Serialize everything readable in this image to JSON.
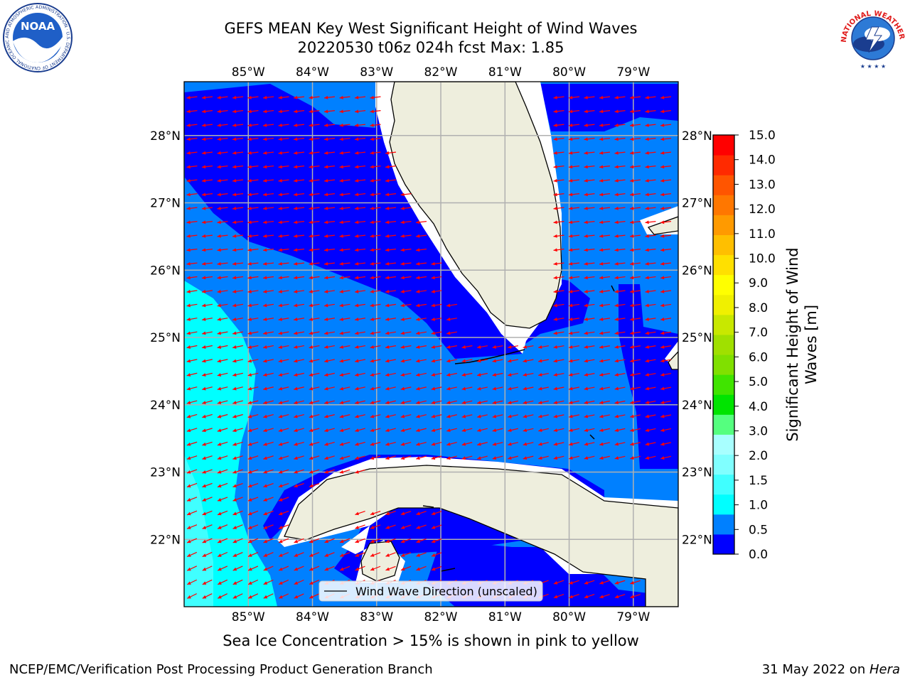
{
  "title": {
    "line1": "GEFS MEAN Key West Significant Height of Wind Waves",
    "line2": "20220530 t06z 024h fcst   Max: 1.85"
  },
  "map": {
    "lon_ticks": [
      "85°W",
      "84°W",
      "83°W",
      "82°W",
      "81°W",
      "80°W",
      "79°W"
    ],
    "lon_values": [
      -85,
      -84,
      -83,
      -82,
      -81,
      -80,
      -79
    ],
    "lat_ticks": [
      "28°N",
      "27°N",
      "26°N",
      "25°N",
      "24°N",
      "23°N",
      "22°N"
    ],
    "lat_values": [
      28,
      27,
      26,
      25,
      24,
      23,
      22
    ],
    "lon_range": [
      -86.0,
      -78.3
    ],
    "lat_range": [
      21.0,
      28.8
    ],
    "legend_label": "Wind Wave Direction (unscaled)",
    "colors": {
      "land": "#eeeedd",
      "arrow": "#ff0000",
      "grid": "#b0b0b0",
      "coast": "#000000"
    }
  },
  "colorbar": {
    "label_line1": "Significant Height of Wind",
    "label_line2": "Waves [m]",
    "ticks": [
      "0.0",
      "0.5",
      "1.0",
      "1.5",
      "2.0",
      "3.0",
      "4.0",
      "5.0",
      "6.0",
      "7.0",
      "8.0",
      "9.0",
      "10.0",
      "11.0",
      "12.0",
      "13.0",
      "14.0",
      "15.0"
    ],
    "colors": [
      "#0000ff",
      "#0080ff",
      "#00ffff",
      "#40ffff",
      "#80ffff",
      "#a8ffff",
      "#55ff7f",
      "#00e400",
      "#40e400",
      "#80e000",
      "#a0e000",
      "#c8e800",
      "#f0f000",
      "#ffff00",
      "#ffe000",
      "#ffbf00",
      "#ff9a00",
      "#ff7700",
      "#ff5500",
      "#ff2a00",
      "#ff0000"
    ]
  },
  "caption": "Sea Ice Concentration > 15% is shown in pink to yellow",
  "footer": {
    "left": "NCEP/EMC/Verification Post Processing Product Generation Branch",
    "right_date": "31 May 2022 on ",
    "right_host": "Hera"
  },
  "logos": {
    "noaa_text": "NOAA",
    "noaa_ring": "NATIONAL OCEANIC AND ATMOSPHERIC ADMINISTRATION · U.S. DEPARTMENT OF COMMERCE",
    "nws_ring": "NATIONAL WEATHER SERVICE"
  }
}
